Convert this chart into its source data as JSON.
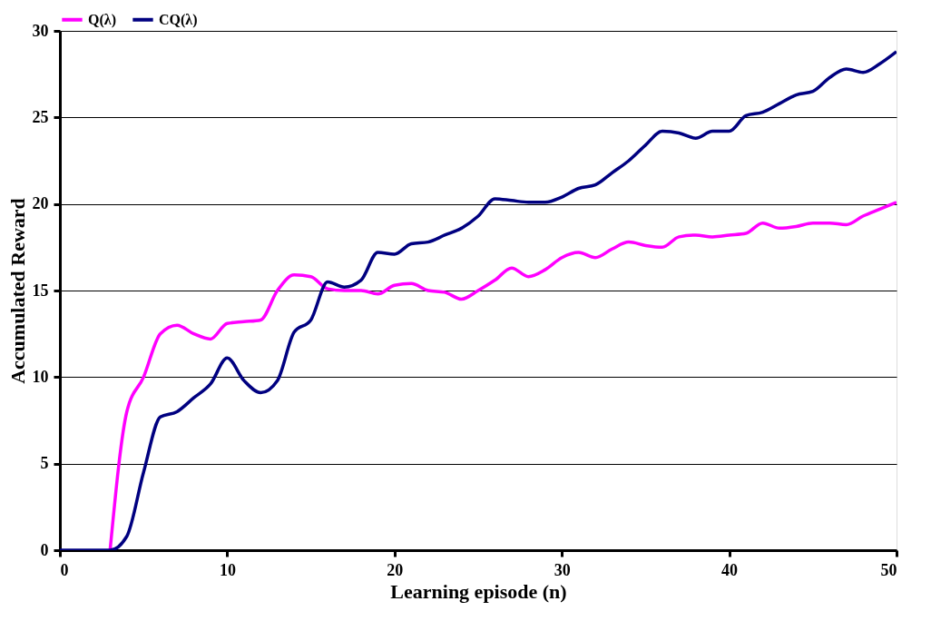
{
  "chart_data": {
    "type": "line",
    "xlabel": "Learning episode (n)",
    "ylabel": "Accumulated Reward",
    "x": [
      0,
      1,
      2,
      3,
      4,
      5,
      6,
      7,
      8,
      9,
      10,
      11,
      12,
      13,
      14,
      15,
      16,
      17,
      18,
      19,
      20,
      21,
      22,
      23,
      24,
      25,
      26,
      27,
      28,
      29,
      30,
      31,
      32,
      33,
      34,
      35,
      36,
      37,
      38,
      39,
      40,
      41,
      42,
      43,
      44,
      45,
      46,
      47,
      48,
      49,
      50
    ],
    "series": [
      {
        "name": "Q(λ)",
        "color": "#ff00ff",
        "values": [
          null,
          null,
          null,
          0,
          8,
          10,
          12.5,
          13,
          12.5,
          12.2,
          13.1,
          13.2,
          13.3,
          15,
          15.9,
          15.8,
          15.1,
          15,
          15,
          14.8,
          15.3,
          15.4,
          15,
          14.9,
          14.5,
          15,
          15.6,
          16.3,
          15.8,
          16.2,
          16.9,
          17.2,
          16.9,
          17.4,
          17.8,
          17.6,
          17.5,
          18.1,
          18.2,
          18.1,
          18.2,
          18.3,
          18.9,
          18.6,
          18.7,
          18.9,
          18.9,
          18.8,
          19.3,
          19.7,
          20.1
        ]
      },
      {
        "name": "CQ(λ)",
        "color": "#000080",
        "values": [
          0,
          0,
          0,
          0,
          0.8,
          4.5,
          7.7,
          8,
          8.8,
          9.6,
          11.1,
          9.8,
          9.1,
          9.8,
          12.6,
          13.3,
          15.5,
          15.2,
          15.6,
          17.2,
          17.1,
          17.7,
          17.8,
          18.2,
          18.6,
          19.3,
          20.3,
          20.2,
          20.1,
          20.1,
          20.4,
          20.9,
          21.1,
          21.8,
          22.5,
          23.4,
          24.2,
          24.1,
          23.8,
          24.2,
          24.2,
          25.1,
          25.3,
          25.8,
          26.3,
          26.5,
          27.3,
          27.8,
          27.6,
          28.1,
          28.8
        ]
      }
    ],
    "xlim": [
      0,
      50
    ],
    "xticks": [
      0,
      10,
      20,
      30,
      40,
      50
    ],
    "ylim": [
      0,
      30
    ],
    "yticks": [
      0,
      5,
      10,
      15,
      20,
      25,
      30
    ],
    "grid": "y",
    "legend": "top",
    "marker": "none",
    "line_style": "solid"
  }
}
